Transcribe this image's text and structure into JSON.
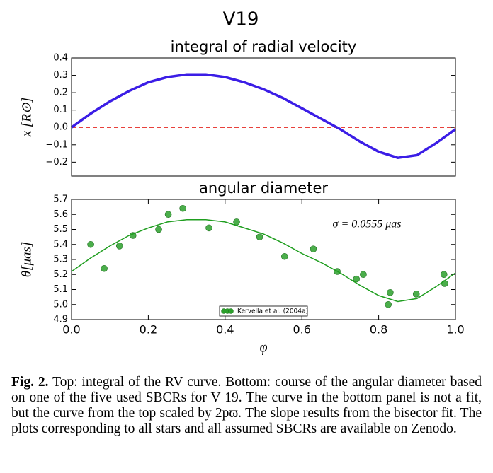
{
  "title": "V19",
  "chart_data": [
    {
      "type": "line",
      "title": "integral of radial velocity",
      "ylabel": "x [R⊙]",
      "xlim": [
        0,
        1
      ],
      "ylim": [
        -0.28,
        0.4
      ],
      "yticks": [
        {
          "value": -0.2,
          "label": "−0.2"
        },
        {
          "value": -0.1,
          "label": "−0.1"
        },
        {
          "value": 0,
          "label": "0.0"
        },
        0.1,
        0.2,
        0.3,
        0.4
      ],
      "grid": false,
      "hline": {
        "value": 0,
        "color": "#e8413c",
        "style": "dashed"
      },
      "series": [
        {
          "type": "line",
          "color": "#3b1de6",
          "x": [
            0,
            0.05,
            0.1,
            0.15,
            0.2,
            0.25,
            0.3,
            0.35,
            0.4,
            0.45,
            0.5,
            0.55,
            0.6,
            0.65,
            0.7,
            0.75,
            0.8,
            0.85,
            0.9,
            0.95,
            1.0
          ],
          "values": [
            0.0,
            0.08,
            0.15,
            0.21,
            0.26,
            0.29,
            0.305,
            0.305,
            0.29,
            0.26,
            0.22,
            0.17,
            0.11,
            0.05,
            -0.01,
            -0.08,
            -0.14,
            -0.175,
            -0.16,
            -0.09,
            -0.01
          ]
        }
      ]
    },
    {
      "type": "scatter",
      "title": "angular diameter",
      "ylabel": "θ[μas]",
      "xlabel": "φ",
      "xlim": [
        0,
        1
      ],
      "ylim": [
        4.9,
        5.7
      ],
      "xticks": [
        {
          "value": 0,
          "label": "0.0"
        },
        0.2,
        0.4,
        0.6,
        0.8,
        {
          "value": 1,
          "label": "1.0"
        }
      ],
      "yticks": [
        4.9,
        {
          "value": 5,
          "label": "5.0"
        },
        5.1,
        5.2,
        5.3,
        5.4,
        5.5,
        5.6,
        5.7
      ],
      "grid": false,
      "annotation": "σ = 0.0555 μas",
      "legend": "lower center",
      "series": [
        {
          "type": "scatter",
          "name": "Kervella et al. (2004a)",
          "color": "#2ca02c",
          "x": [
            0.05,
            0.085,
            0.125,
            0.16,
            0.227,
            0.252,
            0.29,
            0.358,
            0.43,
            0.49,
            0.555,
            0.63,
            0.692,
            0.742,
            0.76,
            0.825,
            0.83,
            0.898,
            0.97,
            0.972
          ],
          "values": [
            5.4,
            5.24,
            5.39,
            5.46,
            5.5,
            5.6,
            5.64,
            5.51,
            5.55,
            5.45,
            5.32,
            5.37,
            5.22,
            5.17,
            5.2,
            5.0,
            5.08,
            5.07,
            5.2,
            5.14
          ]
        },
        {
          "type": "line",
          "color": "#1f9e1f",
          "x": [
            0,
            0.05,
            0.1,
            0.15,
            0.2,
            0.25,
            0.3,
            0.35,
            0.4,
            0.45,
            0.5,
            0.55,
            0.6,
            0.65,
            0.7,
            0.75,
            0.8,
            0.85,
            0.9,
            0.95,
            1.0
          ],
          "values": [
            5.22,
            5.31,
            5.39,
            5.46,
            5.51,
            5.55,
            5.565,
            5.565,
            5.55,
            5.51,
            5.47,
            5.41,
            5.34,
            5.28,
            5.21,
            5.13,
            5.06,
            5.02,
            5.04,
            5.12,
            5.21
          ]
        }
      ]
    }
  ],
  "caption": {
    "label": "Fig. 2.",
    "text": "Top: integral of the RV curve. Bottom: course of the angular diameter based on one of the five used SBCRs for V 19. The curve in the bottom panel is not a fit, but the curve from the top scaled by 2pϖ. The slope results from the bisector fit. The plots corresponding to all stars and all assumed SBCRs are available on Zenodo."
  }
}
